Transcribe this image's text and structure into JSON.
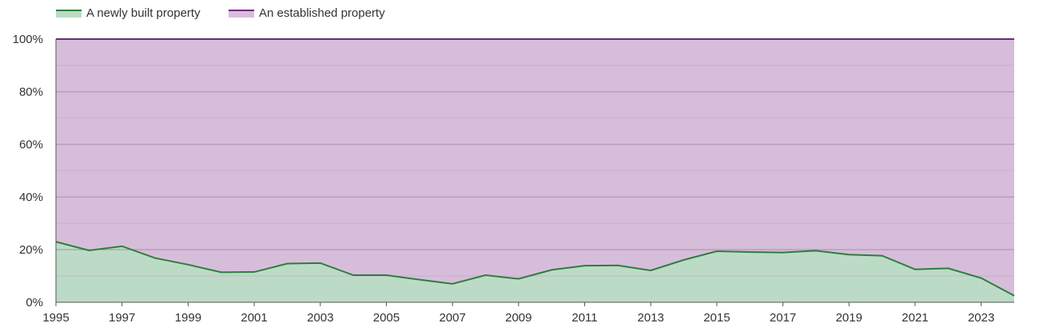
{
  "chart_data": {
    "type": "area",
    "stacked": true,
    "percent": true,
    "x": [
      1995,
      1996,
      1997,
      1998,
      1999,
      2000,
      2001,
      2002,
      2003,
      2004,
      2005,
      2006,
      2007,
      2008,
      2009,
      2010,
      2011,
      2012,
      2013,
      2014,
      2015,
      2016,
      2017,
      2018,
      2019,
      2020,
      2021,
      2022,
      2023,
      2024
    ],
    "series": [
      {
        "name": "A newly built property",
        "color": "#2e7d3c",
        "fill": "#bcdbc6",
        "values": [
          23,
          19.7,
          21.3,
          16.8,
          14.3,
          11.4,
          11.5,
          14.7,
          14.9,
          10.3,
          10.3,
          8.6,
          7.0,
          10.3,
          8.9,
          12.3,
          13.9,
          14.0,
          12.1,
          16.1,
          19.4,
          19.1,
          18.9,
          19.6,
          18.1,
          17.7,
          12.5,
          12.9,
          9.2,
          2.5
        ]
      },
      {
        "name": "An established property",
        "color": "#6b2c78",
        "fill": "#d6bedb",
        "values": [
          77,
          80.3,
          78.7,
          83.2,
          85.7,
          88.6,
          88.5,
          85.3,
          85.1,
          89.7,
          89.7,
          91.4,
          93.0,
          89.7,
          91.1,
          87.7,
          86.1,
          86.0,
          87.9,
          83.9,
          80.6,
          80.9,
          81.1,
          80.4,
          81.9,
          82.3,
          87.5,
          87.1,
          90.8,
          97.5
        ]
      }
    ],
    "x_tick_labels": [
      "1995",
      "1997",
      "1999",
      "2001",
      "2003",
      "2005",
      "2007",
      "2009",
      "2011",
      "2013",
      "2015",
      "2017",
      "2019",
      "2021",
      "2023"
    ],
    "y_tick_labels": [
      "0%",
      "20%",
      "40%",
      "60%",
      "80%",
      "100%"
    ],
    "y_ticks": [
      0,
      20,
      40,
      60,
      80,
      100
    ],
    "ylim": [
      0,
      100
    ],
    "xlim": [
      1995,
      2024
    ],
    "grid": true,
    "legend_position": "top-left"
  }
}
